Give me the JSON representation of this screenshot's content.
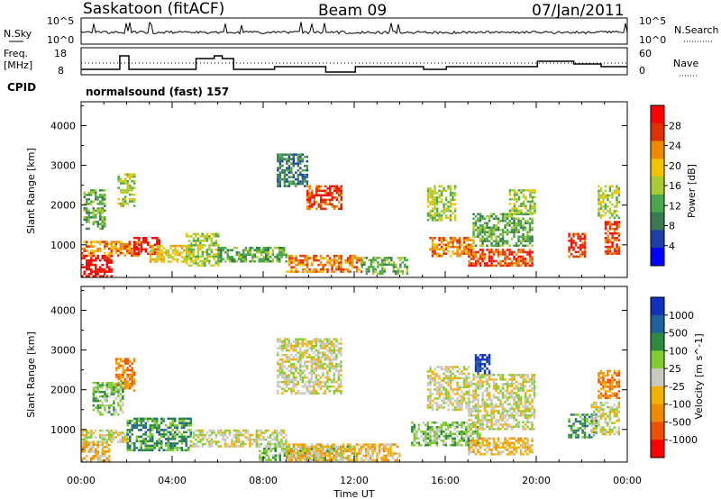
{
  "header": {
    "station": "Saskatoon (fitACF)",
    "beam": "Beam 09",
    "date": "07/Jan/2011"
  },
  "nsky_panel": {
    "left_label": "N.Sky",
    "right_label": "N.Search",
    "left_ticks": [
      "10^5",
      "10^0"
    ],
    "right_ticks": [
      "10^5",
      "10^0"
    ]
  },
  "freq_panel": {
    "left_label_1": "Freq.",
    "left_label_2": "[MHz]",
    "right_label": "Nave",
    "left_ticks": [
      "18",
      "8"
    ],
    "right_ticks": [
      "60",
      "0"
    ],
    "freq_steps": [
      [
        0.0,
        10
      ],
      [
        1.6,
        10
      ],
      [
        1.7,
        15
      ],
      [
        2.1,
        10
      ],
      [
        5.0,
        10
      ],
      [
        5.05,
        14
      ],
      [
        5.8,
        14
      ],
      [
        5.85,
        15
      ],
      [
        6.2,
        14
      ],
      [
        6.7,
        10
      ],
      [
        8.4,
        10
      ],
      [
        8.5,
        11
      ],
      [
        10.7,
        11
      ],
      [
        10.75,
        9
      ],
      [
        12.0,
        9
      ],
      [
        12.05,
        11
      ],
      [
        15.0,
        11
      ],
      [
        15.05,
        10
      ],
      [
        16.0,
        10
      ],
      [
        16.05,
        11
      ],
      [
        20.0,
        11
      ],
      [
        20.05,
        13
      ],
      [
        21.6,
        13
      ],
      [
        21.65,
        12
      ],
      [
        22.8,
        12
      ],
      [
        22.85,
        11
      ],
      [
        24.0,
        11
      ]
    ]
  },
  "cpid": {
    "label": "CPID",
    "program": "normalsound (fast) 157"
  },
  "chart_data": [
    {
      "type": "heatmap",
      "quantity": "Power",
      "ylabel": "Slant Range [km]",
      "xlabel": "Time UT",
      "colorbar_label": "Power [dB]",
      "colorbar_ticks": [
        "28",
        "24",
        "20",
        "16",
        "12",
        "8",
        "4"
      ],
      "ylim": [
        180,
        4600
      ],
      "xlim": [
        0,
        24
      ],
      "y_ticks": [
        "1000",
        "2000",
        "3000",
        "4000"
      ],
      "x_ticks": [
        "00:00",
        "04:00",
        "08:00",
        "12:00",
        "16:00",
        "20:00",
        "00:00"
      ],
      "colors": [
        "#0000ff",
        "#1f3fa8",
        "#3a7a52",
        "#4aa84a",
        "#a8cc30",
        "#f2c200",
        "#f08a00",
        "#e03000",
        "#ff0000"
      ],
      "regions": [
        {
          "t0": 0.0,
          "t1": 1.3,
          "r0": 200,
          "r1": 750,
          "c": 8
        },
        {
          "t0": 0.0,
          "t1": 2.5,
          "r0": 750,
          "r1": 1100,
          "c": 6
        },
        {
          "t0": 2.3,
          "t1": 3.4,
          "r0": 800,
          "r1": 1200,
          "c": 8
        },
        {
          "t0": 3.0,
          "t1": 4.8,
          "r0": 600,
          "r1": 1000,
          "c": 5
        },
        {
          "t0": 4.6,
          "t1": 6.0,
          "r0": 500,
          "r1": 1300,
          "c": 4
        },
        {
          "t0": 0.1,
          "t1": 1.0,
          "r0": 1400,
          "r1": 2400,
          "c": 3
        },
        {
          "t0": 1.6,
          "t1": 2.3,
          "r0": 2000,
          "r1": 2800,
          "c": 4
        },
        {
          "t0": 6.0,
          "t1": 9.0,
          "r0": 600,
          "r1": 950,
          "c": 3
        },
        {
          "t0": 9.0,
          "t1": 12.3,
          "r0": 350,
          "r1": 750,
          "c": 6
        },
        {
          "t0": 12.3,
          "t1": 14.3,
          "r0": 300,
          "r1": 700,
          "c": 3
        },
        {
          "t0": 8.6,
          "t1": 9.9,
          "r0": 2500,
          "r1": 3300,
          "c": 2
        },
        {
          "t0": 9.9,
          "t1": 11.4,
          "r0": 1900,
          "r1": 2500,
          "c": 7
        },
        {
          "t0": 15.3,
          "t1": 17.2,
          "r0": 700,
          "r1": 1200,
          "c": 6
        },
        {
          "t0": 15.2,
          "t1": 16.4,
          "r0": 1600,
          "r1": 2500,
          "c": 4
        },
        {
          "t0": 17.0,
          "t1": 19.8,
          "r0": 450,
          "r1": 900,
          "c": 7
        },
        {
          "t0": 17.2,
          "t1": 19.8,
          "r0": 1000,
          "r1": 1800,
          "c": 3
        },
        {
          "t0": 18.8,
          "t1": 19.9,
          "r0": 1800,
          "r1": 2400,
          "c": 4
        },
        {
          "t0": 21.4,
          "t1": 22.1,
          "r0": 700,
          "r1": 1300,
          "c": 7
        },
        {
          "t0": 23.0,
          "t1": 23.6,
          "r0": 800,
          "r1": 1600,
          "c": 7
        },
        {
          "t0": 22.7,
          "t1": 23.6,
          "r0": 1700,
          "r1": 2500,
          "c": 4
        }
      ]
    },
    {
      "type": "heatmap",
      "quantity": "Velocity",
      "ylabel": "Slant Range [km]",
      "xlabel": "Time UT",
      "colorbar_label": "Velocity [m s^-1]",
      "colorbar_ticks": [
        "1000",
        "500",
        "100",
        "25",
        "-25",
        "-100",
        "-500",
        "-1000"
      ],
      "ylim": [
        180,
        4600
      ],
      "xlim": [
        0,
        24
      ],
      "y_ticks": [
        "1000",
        "2000",
        "3000",
        "4000"
      ],
      "x_ticks": [
        "00:00",
        "04:00",
        "08:00",
        "12:00",
        "16:00",
        "20:00",
        "00:00"
      ],
      "colors": [
        "#ff0000",
        "#f05000",
        "#f08a00",
        "#f4b000",
        "#c8c8c0",
        "#7fcc30",
        "#2e8a40",
        "#2060a0",
        "#1030c0"
      ],
      "regions": [
        {
          "t0": 0.0,
          "t1": 1.2,
          "r0": 200,
          "r1": 700,
          "c": 3
        },
        {
          "t0": 0.0,
          "t1": 2.0,
          "r0": 700,
          "r1": 1000,
          "c": 4
        },
        {
          "t0": 2.0,
          "t1": 4.8,
          "r0": 500,
          "r1": 1300,
          "c": 6
        },
        {
          "t0": 1.5,
          "t1": 2.3,
          "r0": 2000,
          "r1": 2800,
          "c": 2
        },
        {
          "t0": 0.5,
          "t1": 1.8,
          "r0": 1400,
          "r1": 2200,
          "c": 5
        },
        {
          "t0": 4.8,
          "t1": 9.0,
          "r0": 600,
          "r1": 1000,
          "c": 4
        },
        {
          "t0": 7.8,
          "t1": 12.0,
          "r0": 250,
          "r1": 600,
          "c": 5
        },
        {
          "t0": 9.0,
          "t1": 14.0,
          "r0": 250,
          "r1": 650,
          "c": 3
        },
        {
          "t0": 8.6,
          "t1": 11.4,
          "r0": 1900,
          "r1": 3300,
          "c": 4
        },
        {
          "t0": 14.5,
          "t1": 17.5,
          "r0": 600,
          "r1": 1200,
          "c": 5
        },
        {
          "t0": 15.2,
          "t1": 17.0,
          "r0": 1500,
          "r1": 2600,
          "c": 4
        },
        {
          "t0": 17.0,
          "t1": 19.8,
          "r0": 400,
          "r1": 800,
          "c": 3
        },
        {
          "t0": 17.0,
          "t1": 19.9,
          "r0": 1000,
          "r1": 2400,
          "c": 4
        },
        {
          "t0": 17.3,
          "t1": 17.9,
          "r0": 2400,
          "r1": 2900,
          "c": 8
        },
        {
          "t0": 21.4,
          "t1": 22.6,
          "r0": 800,
          "r1": 1400,
          "c": 6
        },
        {
          "t0": 22.7,
          "t1": 23.6,
          "r0": 1800,
          "r1": 2500,
          "c": 2
        },
        {
          "t0": 22.4,
          "t1": 23.6,
          "r0": 900,
          "r1": 1700,
          "c": 4
        }
      ]
    }
  ]
}
